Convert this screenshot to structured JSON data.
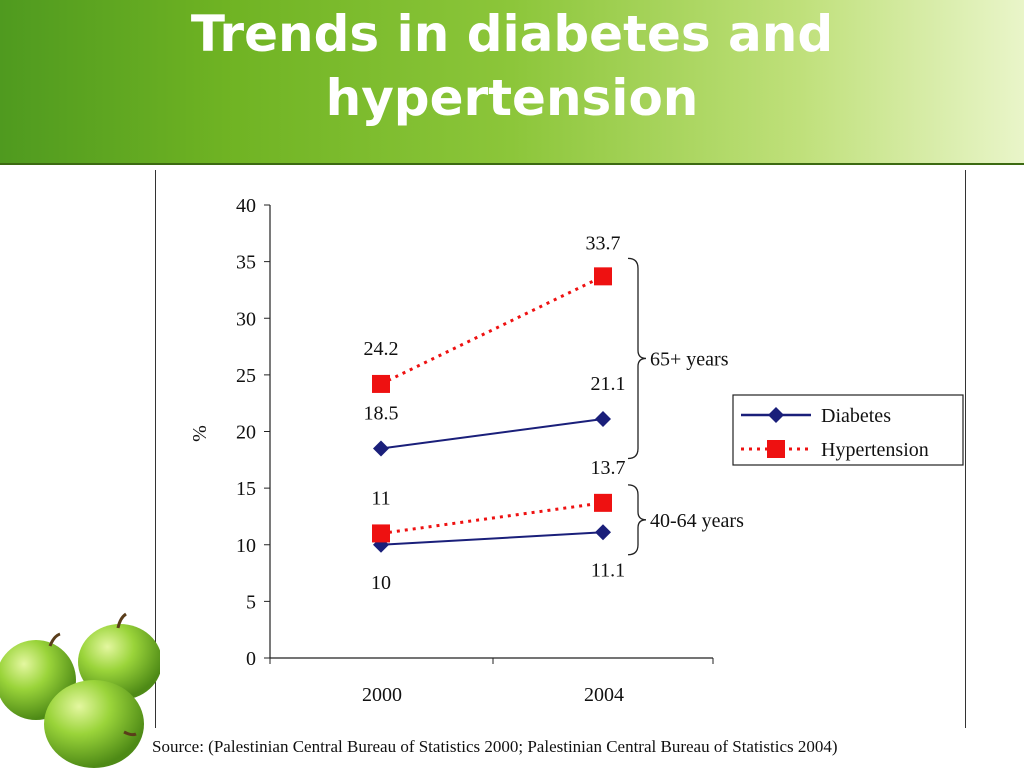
{
  "slide": {
    "title_line1": "Trends in diabetes and",
    "title_line2": "hypertension",
    "source": "Source: (Palestinian Central Bureau of Statistics 2000; Palestinian Central Bureau of Statistics 2004)"
  },
  "colors": {
    "diabetes": "#1a1f7a",
    "hypertension": "#ee1111",
    "banner_start": "#4f9a1f",
    "banner_end": "#e9f5c9"
  },
  "decoration_icon": "green-apples-icon",
  "chart_data": {
    "type": "line",
    "title": "",
    "ylabel": "%",
    "xlabel": "",
    "categories": [
      "2000",
      "2004"
    ],
    "ylim": [
      0,
      40
    ],
    "yticks": [
      0,
      5,
      10,
      15,
      20,
      25,
      30,
      35,
      40
    ],
    "grid": false,
    "legend_position": "right",
    "groups": [
      {
        "label": "65+ years",
        "series": [
          {
            "name": "Diabetes",
            "values": [
              18.5,
              21.1
            ],
            "labels": [
              "18.5",
              "21.1"
            ]
          },
          {
            "name": "Hypertension",
            "values": [
              24.2,
              33.7
            ],
            "labels": [
              "24.2",
              "33.7"
            ]
          }
        ]
      },
      {
        "label": "40-64 years",
        "series": [
          {
            "name": "Diabetes",
            "values": [
              10,
              11.1
            ],
            "labels": [
              "10",
              "11.1"
            ]
          },
          {
            "name": "Hypertension",
            "values": [
              11,
              13.7
            ],
            "labels": [
              "11",
              "13.7"
            ]
          }
        ]
      }
    ],
    "legend": [
      {
        "name": "Diabetes",
        "marker": "diamond",
        "style": "solid"
      },
      {
        "name": "Hypertension",
        "marker": "square",
        "style": "dotted"
      }
    ]
  }
}
